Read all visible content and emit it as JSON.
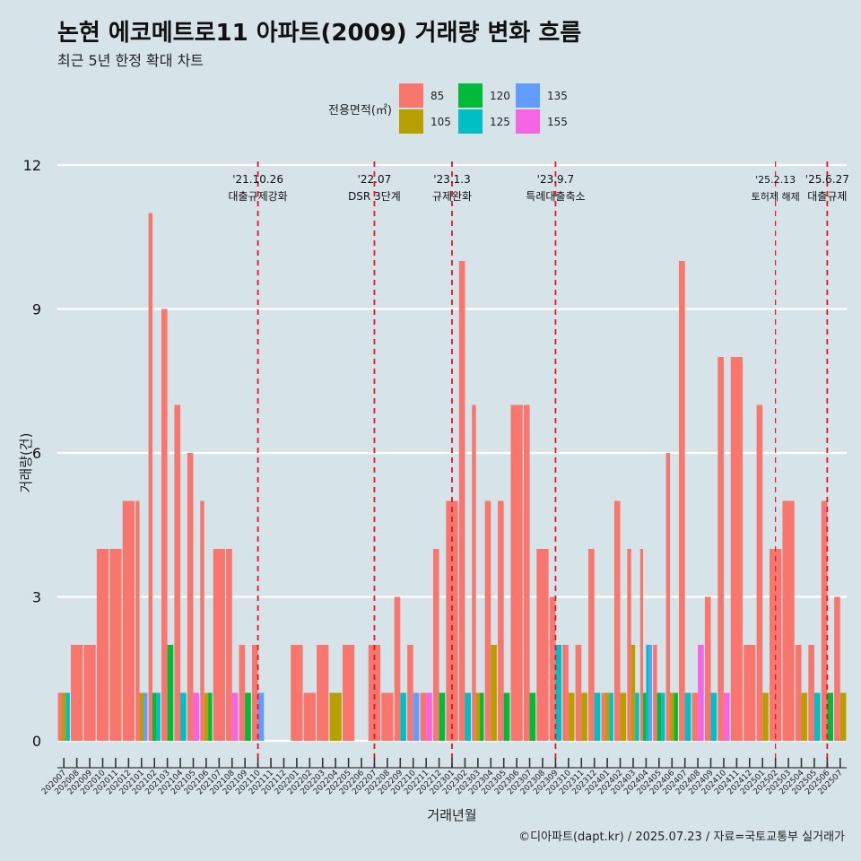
{
  "title": "논현 에코메트로11 아파트(2009) 거래량 변화 흐름",
  "subtitle": "최근 5년 한정 확대 차트",
  "caption": "©디아파트(dapt.kr) / 2025.07.23 / 자료=국토교통부 실거래가",
  "legend": {
    "title": "전용면적(㎡)",
    "items": [
      {
        "label": "85",
        "color": "#f8766d"
      },
      {
        "label": "105",
        "color": "#b79f00"
      },
      {
        "label": "120",
        "color": "#00ba38"
      },
      {
        "label": "125",
        "color": "#00bfc4"
      },
      {
        "label": "135",
        "color": "#619cff"
      },
      {
        "label": "155",
        "color": "#f564e3"
      }
    ]
  },
  "chart_data": {
    "type": "bar",
    "stacking": "dodge",
    "xlabel": "거래년월",
    "ylabel": "거래량(건)",
    "ylim": [
      0,
      12
    ],
    "yticks": [
      0,
      3,
      6,
      9,
      12
    ],
    "grid": true,
    "categories": [
      "202007",
      "202008",
      "202009",
      "202010",
      "202011",
      "202012",
      "202101",
      "202102",
      "202103",
      "202104",
      "202105",
      "202106",
      "202107",
      "202108",
      "202109",
      "202110",
      "202111",
      "202112",
      "202201",
      "202202",
      "202203",
      "202204",
      "202205",
      "202206",
      "202207",
      "202208",
      "202209",
      "202210",
      "202211",
      "202212",
      "202301",
      "202302",
      "202303",
      "202304",
      "202305",
      "202306",
      "202307",
      "202308",
      "202309",
      "202310",
      "202311",
      "202312",
      "202401",
      "202402",
      "202403",
      "202404",
      "202405",
      "202406",
      "202407",
      "202408",
      "202409",
      "202410",
      "202411",
      "202412",
      "202501",
      "202502",
      "202503",
      "202504",
      "202505",
      "202506",
      "202507"
    ],
    "data": [
      {
        "month": "202007",
        "bars": [
          {
            "size": "85",
            "value": 1
          },
          {
            "size": "105",
            "value": 1
          },
          {
            "size": "125",
            "value": 1
          }
        ]
      },
      {
        "month": "202008",
        "bars": [
          {
            "size": "85",
            "value": 2
          }
        ]
      },
      {
        "month": "202009",
        "bars": [
          {
            "size": "85",
            "value": 2
          }
        ]
      },
      {
        "month": "202010",
        "bars": [
          {
            "size": "85",
            "value": 4
          }
        ]
      },
      {
        "month": "202011",
        "bars": [
          {
            "size": "85",
            "value": 4
          }
        ]
      },
      {
        "month": "202012",
        "bars": [
          {
            "size": "85",
            "value": 5
          }
        ]
      },
      {
        "month": "202101",
        "bars": [
          {
            "size": "85",
            "value": 5
          },
          {
            "size": "105",
            "value": 1
          },
          {
            "size": "135",
            "value": 1
          }
        ]
      },
      {
        "month": "202102",
        "bars": [
          {
            "size": "85",
            "value": 11
          },
          {
            "size": "120",
            "value": 1
          },
          {
            "size": "125",
            "value": 1
          }
        ]
      },
      {
        "month": "202103",
        "bars": [
          {
            "size": "85",
            "value": 9
          },
          {
            "size": "120",
            "value": 2
          }
        ]
      },
      {
        "month": "202104",
        "bars": [
          {
            "size": "85",
            "value": 7
          },
          {
            "size": "125",
            "value": 1
          }
        ]
      },
      {
        "month": "202105",
        "bars": [
          {
            "size": "85",
            "value": 6
          },
          {
            "size": "155",
            "value": 1
          }
        ]
      },
      {
        "month": "202106",
        "bars": [
          {
            "size": "85",
            "value": 5
          },
          {
            "size": "105",
            "value": 1
          },
          {
            "size": "120",
            "value": 1
          }
        ]
      },
      {
        "month": "202107",
        "bars": [
          {
            "size": "85",
            "value": 4
          }
        ]
      },
      {
        "month": "202108",
        "bars": [
          {
            "size": "85",
            "value": 4
          },
          {
            "size": "155",
            "value": 1
          }
        ]
      },
      {
        "month": "202109",
        "bars": [
          {
            "size": "85",
            "value": 2
          },
          {
            "size": "120",
            "value": 1
          }
        ]
      },
      {
        "month": "202110",
        "bars": [
          {
            "size": "85",
            "value": 2
          },
          {
            "size": "135",
            "value": 1
          }
        ]
      },
      {
        "month": "202111",
        "bars": []
      },
      {
        "month": "202112",
        "bars": []
      },
      {
        "month": "202201",
        "bars": [
          {
            "size": "85",
            "value": 2
          }
        ]
      },
      {
        "month": "202202",
        "bars": [
          {
            "size": "85",
            "value": 1
          }
        ]
      },
      {
        "month": "202203",
        "bars": [
          {
            "size": "85",
            "value": 2
          }
        ]
      },
      {
        "month": "202204",
        "bars": [
          {
            "size": "105",
            "value": 1
          }
        ]
      },
      {
        "month": "202205",
        "bars": [
          {
            "size": "85",
            "value": 2
          }
        ]
      },
      {
        "month": "202206",
        "bars": []
      },
      {
        "month": "202207",
        "bars": [
          {
            "size": "85",
            "value": 2
          }
        ]
      },
      {
        "month": "202208",
        "bars": [
          {
            "size": "85",
            "value": 1
          }
        ]
      },
      {
        "month": "202209",
        "bars": [
          {
            "size": "85",
            "value": 3
          },
          {
            "size": "125",
            "value": 1
          }
        ]
      },
      {
        "month": "202210",
        "bars": [
          {
            "size": "85",
            "value": 2
          },
          {
            "size": "135",
            "value": 1
          }
        ]
      },
      {
        "month": "202211",
        "bars": [
          {
            "size": "85",
            "value": 1
          },
          {
            "size": "155",
            "value": 1
          }
        ]
      },
      {
        "month": "202212",
        "bars": [
          {
            "size": "85",
            "value": 4
          },
          {
            "size": "120",
            "value": 1
          }
        ]
      },
      {
        "month": "202301",
        "bars": [
          {
            "size": "85",
            "value": 5
          }
        ]
      },
      {
        "month": "202302",
        "bars": [
          {
            "size": "85",
            "value": 10
          },
          {
            "size": "125",
            "value": 1
          }
        ]
      },
      {
        "month": "202303",
        "bars": [
          {
            "size": "85",
            "value": 7
          },
          {
            "size": "105",
            "value": 1
          },
          {
            "size": "120",
            "value": 1
          }
        ]
      },
      {
        "month": "202304",
        "bars": [
          {
            "size": "85",
            "value": 5
          },
          {
            "size": "105",
            "value": 2
          }
        ]
      },
      {
        "month": "202305",
        "bars": [
          {
            "size": "85",
            "value": 5
          },
          {
            "size": "120",
            "value": 1
          }
        ]
      },
      {
        "month": "202306",
        "bars": [
          {
            "size": "85",
            "value": 7
          }
        ]
      },
      {
        "month": "202307",
        "bars": [
          {
            "size": "85",
            "value": 7
          },
          {
            "size": "120",
            "value": 1
          }
        ]
      },
      {
        "month": "202308",
        "bars": [
          {
            "size": "85",
            "value": 4
          }
        ]
      },
      {
        "month": "202309",
        "bars": [
          {
            "size": "85",
            "value": 3
          },
          {
            "size": "125",
            "value": 2
          }
        ]
      },
      {
        "month": "202310",
        "bars": [
          {
            "size": "85",
            "value": 2
          },
          {
            "size": "105",
            "value": 1
          }
        ]
      },
      {
        "month": "202311",
        "bars": [
          {
            "size": "85",
            "value": 2
          },
          {
            "size": "105",
            "value": 1
          }
        ]
      },
      {
        "month": "202312",
        "bars": [
          {
            "size": "85",
            "value": 4
          },
          {
            "size": "125",
            "value": 1
          }
        ]
      },
      {
        "month": "202401",
        "bars": [
          {
            "size": "85",
            "value": 1
          },
          {
            "size": "105",
            "value": 1
          },
          {
            "size": "125",
            "value": 1
          }
        ]
      },
      {
        "month": "202402",
        "bars": [
          {
            "size": "85",
            "value": 5
          },
          {
            "size": "105",
            "value": 1
          }
        ]
      },
      {
        "month": "202403",
        "bars": [
          {
            "size": "85",
            "value": 4
          },
          {
            "size": "105",
            "value": 2
          },
          {
            "size": "125",
            "value": 1
          }
        ]
      },
      {
        "month": "202404",
        "bars": [
          {
            "size": "85",
            "value": 4
          },
          {
            "size": "120",
            "value": 1
          },
          {
            "size": "125",
            "value": 2
          },
          {
            "size": "135",
            "value": 2
          }
        ]
      },
      {
        "month": "202405",
        "bars": [
          {
            "size": "85",
            "value": 2
          },
          {
            "size": "120",
            "value": 1
          },
          {
            "size": "125",
            "value": 1
          }
        ]
      },
      {
        "month": "202406",
        "bars": [
          {
            "size": "85",
            "value": 6
          },
          {
            "size": "105",
            "value": 1
          },
          {
            "size": "120",
            "value": 1
          }
        ]
      },
      {
        "month": "202407",
        "bars": [
          {
            "size": "85",
            "value": 10
          },
          {
            "size": "125",
            "value": 1
          }
        ]
      },
      {
        "month": "202408",
        "bars": [
          {
            "size": "85",
            "value": 1
          },
          {
            "size": "155",
            "value": 2
          }
        ]
      },
      {
        "month": "202409",
        "bars": [
          {
            "size": "85",
            "value": 3
          },
          {
            "size": "125",
            "value": 1
          }
        ]
      },
      {
        "month": "202410",
        "bars": [
          {
            "size": "85",
            "value": 8
          },
          {
            "size": "155",
            "value": 1
          }
        ]
      },
      {
        "month": "202411",
        "bars": [
          {
            "size": "85",
            "value": 8
          }
        ]
      },
      {
        "month": "202412",
        "bars": [
          {
            "size": "85",
            "value": 2
          }
        ]
      },
      {
        "month": "202501",
        "bars": [
          {
            "size": "85",
            "value": 7
          },
          {
            "size": "105",
            "value": 1
          }
        ]
      },
      {
        "month": "202502",
        "bars": [
          {
            "size": "85",
            "value": 4
          }
        ]
      },
      {
        "month": "202503",
        "bars": [
          {
            "size": "85",
            "value": 5
          }
        ]
      },
      {
        "month": "202504",
        "bars": [
          {
            "size": "85",
            "value": 2
          },
          {
            "size": "105",
            "value": 1
          }
        ]
      },
      {
        "month": "202505",
        "bars": [
          {
            "size": "85",
            "value": 2
          },
          {
            "size": "125",
            "value": 1
          }
        ]
      },
      {
        "month": "202506",
        "bars": [
          {
            "size": "85",
            "value": 5
          },
          {
            "size": "120",
            "value": 1
          }
        ]
      },
      {
        "month": "202507",
        "bars": [
          {
            "size": "85",
            "value": 3
          },
          {
            "size": "105",
            "value": 1
          }
        ]
      }
    ],
    "events": [
      {
        "month": "202110",
        "date": "'21.10.26",
        "label": "대출규제강화",
        "style": "bold"
      },
      {
        "month": "202207",
        "date": "'22.07",
        "label": "DSR 3단계",
        "style": "bold"
      },
      {
        "month": "202301",
        "date": "'23.1.3",
        "label": "규제완화",
        "style": "bold"
      },
      {
        "month": "202309",
        "date": "'23.9.7",
        "label": "특례대출축소",
        "style": "bold"
      },
      {
        "month": "202502",
        "date": "'25.2.13",
        "label": "토허제 해제",
        "style": "thin"
      },
      {
        "month": "202506",
        "date": "'25.6.27",
        "label": "대출규제",
        "style": "bold"
      }
    ]
  }
}
